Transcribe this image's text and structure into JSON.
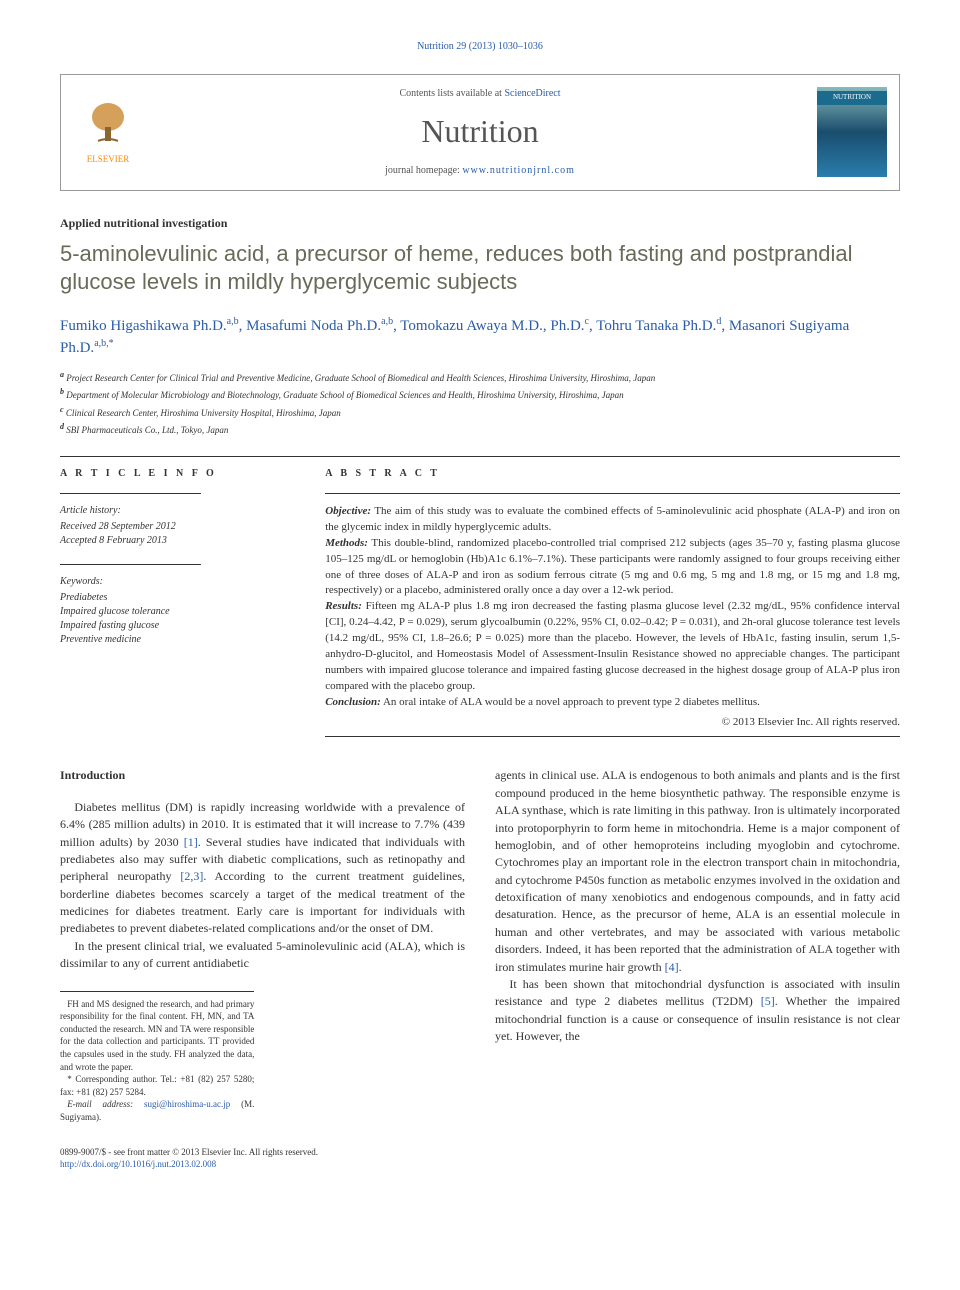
{
  "citation": "Nutrition 29 (2013) 1030–1036",
  "header": {
    "contents_prefix": "Contents lists available at ",
    "contents_link": "ScienceDirect",
    "journal": "Nutrition",
    "homepage_prefix": "journal homepage: ",
    "homepage_url": "www.nutritionjrnl.com",
    "publisher": "ELSEVIER"
  },
  "article_type": "Applied nutritional investigation",
  "title": "5-aminolevulinic acid, a precursor of heme, reduces both fasting and postprandial glucose levels in mildly hyperglycemic subjects",
  "authors_html": "Fumiko Higashikawa Ph.D.<sup>a,b</sup>, Masafumi Noda Ph.D.<sup>a,b</sup>, Tomokazu Awaya M.D., Ph.D.<sup>c</sup>, Tohru Tanaka Ph.D.<sup>d</sup>, Masanori Sugiyama Ph.D.<sup>a,b,*</sup>",
  "affiliations": [
    {
      "letter": "a",
      "text": "Project Research Center for Clinical Trial and Preventive Medicine, Graduate School of Biomedical and Health Sciences, Hiroshima University, Hiroshima, Japan"
    },
    {
      "letter": "b",
      "text": "Department of Molecular Microbiology and Biotechnology, Graduate School of Biomedical Sciences and Health, Hiroshima University, Hiroshima, Japan"
    },
    {
      "letter": "c",
      "text": "Clinical Research Center, Hiroshima University Hospital, Hiroshima, Japan"
    },
    {
      "letter": "d",
      "text": "SBI Pharmaceuticals Co., Ltd., Tokyo, Japan"
    }
  ],
  "info": {
    "heading": "A R T I C L E   I N F O",
    "history_label": "Article history:",
    "received": "Received 28 September 2012",
    "accepted": "Accepted 8 February 2013",
    "keywords_label": "Keywords:",
    "keywords": [
      "Prediabetes",
      "Impaired glucose tolerance",
      "Impaired fasting glucose",
      "Preventive medicine"
    ]
  },
  "abstract": {
    "heading": "A B S T R A C T",
    "objective_label": "Objective:",
    "objective": " The aim of this study was to evaluate the combined effects of 5-aminolevulinic acid phosphate (ALA-P) and iron on the glycemic index in mildly hyperglycemic adults.",
    "methods_label": "Methods:",
    "methods": " This double-blind, randomized placebo-controlled trial comprised 212 subjects (ages 35–70 y, fasting plasma glucose 105–125 mg/dL or hemoglobin (Hb)A1c 6.1%–7.1%). These participants were randomly assigned to four groups receiving either one of three doses of ALA-P and iron as sodium ferrous citrate (5 mg and 0.6 mg, 5 mg and 1.8 mg, or 15 mg and 1.8 mg, respectively) or a placebo, administered orally once a day over a 12-wk period.",
    "results_label": "Results:",
    "results": " Fifteen mg ALA-P plus 1.8 mg iron decreased the fasting plasma glucose level (2.32 mg/dL, 95% confidence interval [CI], 0.24–4.42, P = 0.029), serum glycoalbumin (0.22%, 95% CI, 0.02–0.42; P = 0.031), and 2h-oral glucose tolerance test levels (14.2 mg/dL, 95% CI, 1.8–26.6; P = 0.025) more than the placebo. However, the levels of HbA1c, fasting insulin, serum 1,5-anhydro-D-glucitol, and Homeostasis Model of Assessment-Insulin Resistance showed no appreciable changes. The participant numbers with impaired glucose tolerance and impaired fasting glucose decreased in the highest dosage group of ALA-P plus iron compared with the placebo group.",
    "conclusion_label": "Conclusion:",
    "conclusion": " An oral intake of ALA would be a novel approach to prevent type 2 diabetes mellitus.",
    "copyright": "© 2013 Elsevier Inc. All rights reserved."
  },
  "body": {
    "intro_heading": "Introduction",
    "para1": "Diabetes mellitus (DM) is rapidly increasing worldwide with a prevalence of 6.4% (285 million adults) in 2010. It is estimated that it will increase to 7.7% (439 million adults) by 2030 [1]. Several studies have indicated that individuals with prediabetes also may suffer with diabetic complications, such as retinopathy and peripheral neuropathy [2,3]. According to the current treatment guidelines, borderline diabetes becomes scarcely a target of the medical treatment of the medicines for diabetes treatment. Early care is important for individuals with prediabetes to prevent diabetes-related complications and/or the onset of DM.",
    "para2": "In the present clinical trial, we evaluated 5-aminolevulinic acid (ALA), which is dissimilar to any of current antidiabetic ",
    "para3": "agents in clinical use. ALA is endogenous to both animals and plants and is the first compound produced in the heme biosynthetic pathway. The responsible enzyme is ALA synthase, which is rate limiting in this pathway. Iron is ultimately incorporated into protoporphyrin to form heme in mitochondria. Heme is a major component of hemoglobin, and of other hemoproteins including myoglobin and cytochrome. Cytochromes play an important role in the electron transport chain in mitochondria, and cytochrome P450s function as metabolic enzymes involved in the oxidation and detoxification of many xenobiotics and endogenous compounds, and in fatty acid desaturation. Hence, as the precursor of heme, ALA is an essential molecule in human and other vertebrates, and may be associated with various metabolic disorders. Indeed, it has been reported that the administration of ALA together with iron stimulates murine hair growth [4].",
    "para4": "It has been shown that mitochondrial dysfunction is associated with insulin resistance and type 2 diabetes mellitus (T2DM) [5]. Whether the impaired mitochondrial function is a cause or consequence of insulin resistance is not clear yet. However, the"
  },
  "footnotes": {
    "contrib": "FH and MS designed the research, and had primary responsibility for the final content. FH, MN, and TA conducted the research. MN and TA were responsible for the data collection and participants. TT provided the capsules used in the study. FH analyzed the data, and wrote the paper.",
    "corresp_label": "* Corresponding author. Tel.: +81 (82) 257 5280; fax: +81 (82) 257 5284.",
    "email_label": "E-mail address: ",
    "email": "sugi@hiroshima-u.ac.jp",
    "email_suffix": " (M. Sugiyama)."
  },
  "footer": {
    "line1": "0899-9007/$ - see front matter © 2013 Elsevier Inc. All rights reserved.",
    "doi": "http://dx.doi.org/10.1016/j.nut.2013.02.008"
  },
  "colors": {
    "link": "#2a5caa",
    "title_gray": "#6a6a5a",
    "elsevier_orange": "#ff8800"
  }
}
